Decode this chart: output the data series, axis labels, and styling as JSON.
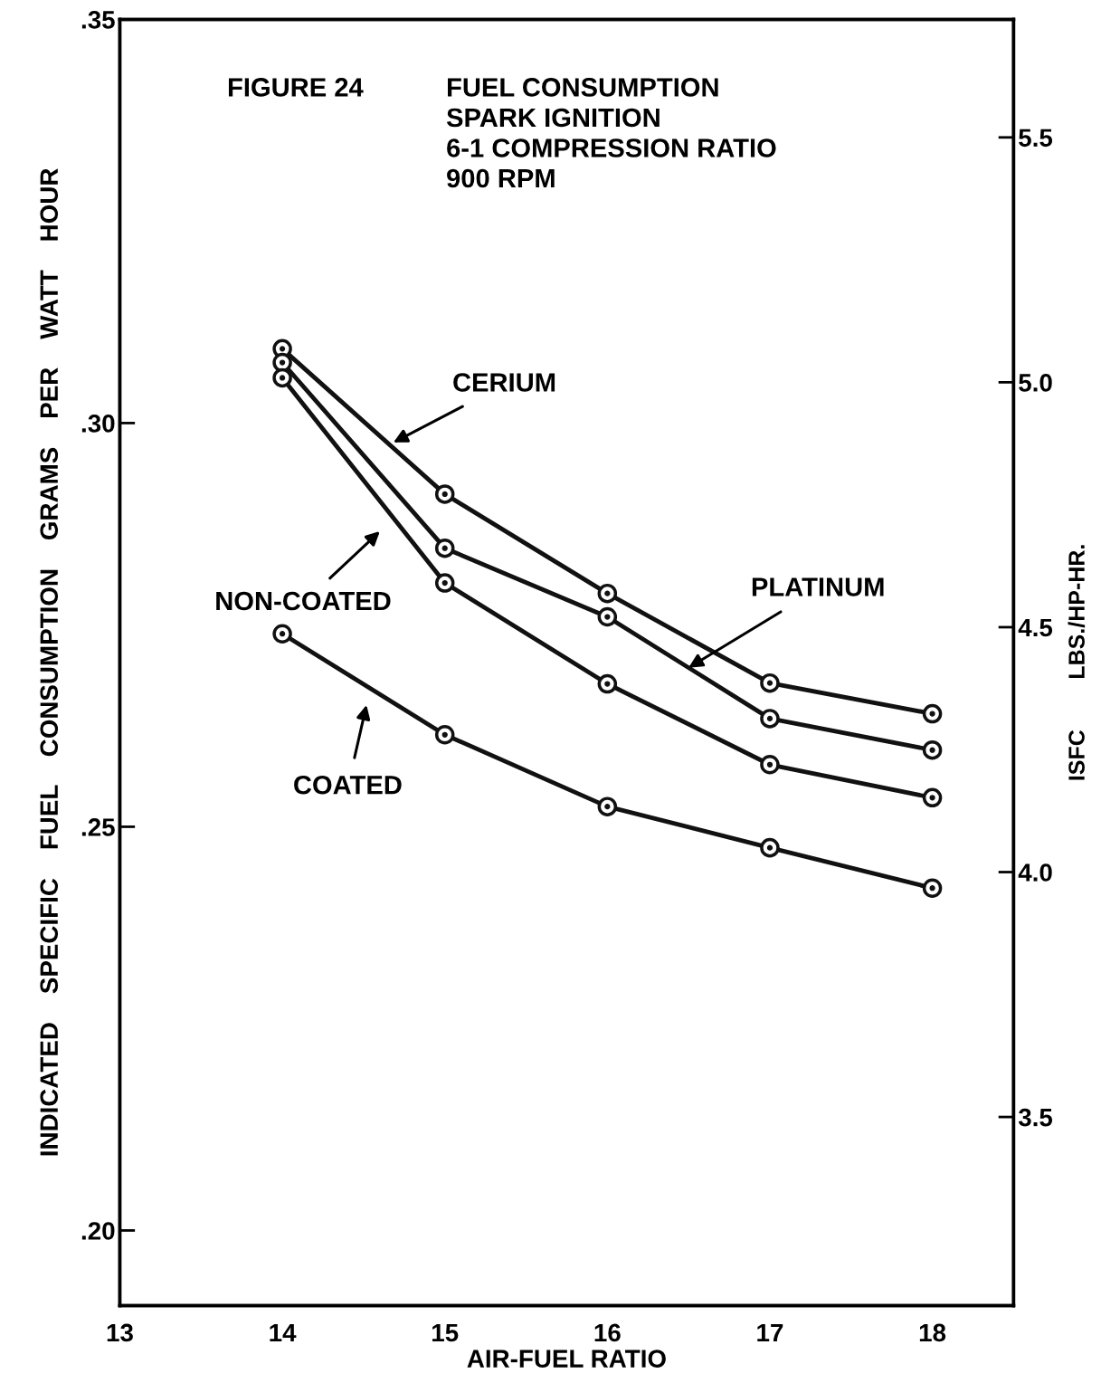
{
  "chart_data": {
    "type": "line",
    "title": "FIGURE 24",
    "subtitle": "FUEL CONSUMPTION\nSPARK IGNITION\n6-1 COMPRESSION RATIO\n900 RPM",
    "xlabel": "AIR-FUEL RATIO",
    "ylabel": "INDICATED SPECIFIC FUEL CONSUMPTION GRAMS PER WATT HOUR",
    "y2label": "ISFC        LBS./HP-HR.",
    "x": [
      14,
      15,
      16,
      17,
      18
    ],
    "series": [
      {
        "color": "#111111",
        "values": [
          0.3092,
          0.2912,
          0.2789,
          0.2678,
          0.264
        ]
      },
      {
        "color": "#111111",
        "values": [
          0.3075,
          0.2845,
          0.276,
          0.2634,
          0.2595
        ]
      },
      {
        "color": "#111111",
        "values": [
          0.3056,
          0.2802,
          0.2677,
          0.2577,
          0.2536
        ]
      },
      {
        "color": "#111111",
        "values": [
          0.2739,
          0.2614,
          0.2525,
          0.2474,
          0.2424
        ]
      }
    ],
    "annotations": [
      "CERIUM",
      {
        "text": "PLATINUM",
        "x": 16.5,
        "y": 0.2697
      },
      "NON-COATED",
      "COATED"
    ],
    "xlim": [
      13,
      18.5
    ],
    "xticks": [
      13,
      14,
      15,
      16,
      17,
      18
    ],
    "ylim": [
      0.1907,
      0.35
    ],
    "yticks": [
      {
        "value": 0.2,
        "label": ".20"
      },
      {
        "value": 0.25,
        "label": ".25"
      },
      {
        "value": 0.3,
        "label": ".30"
      },
      {
        "value": 0.35,
        "label": ".35"
      }
    ],
    "y2lim": [
      3.115,
      5.741
    ],
    "y2ticks": [
      3.5,
      {
        "value": 4,
        "label": "4.0"
      },
      4.5,
      {
        "value": 5,
        "label": "5.0"
      },
      5.5
    ],
    "grid": false,
    "marker": "circle",
    "line_style": "solid"
  }
}
